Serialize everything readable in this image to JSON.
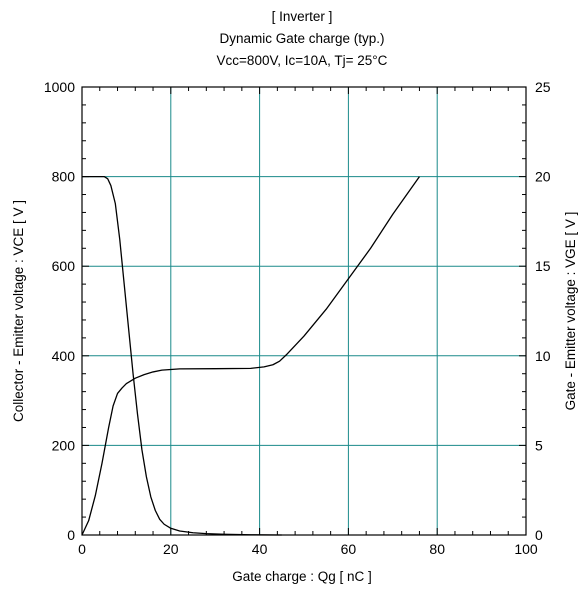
{
  "chart_data": {
    "type": "line",
    "title_lines": [
      "[ Inverter ]",
      "Dynamic Gate charge  (typ.)",
      "Vcc=800V, Ic=10A, Tj= 25°C"
    ],
    "xlabel": "Gate charge  :  Qg  [ nC ]",
    "ylabel_left": "Collector - Emitter voltage  :  VCE  [ V ]",
    "ylabel_right": "Gate - Emitter voltage  :  VGE  [ V ]",
    "xlim": [
      0,
      100
    ],
    "ylim_left": [
      0,
      1000
    ],
    "ylim_right": [
      0,
      25
    ],
    "x_ticks": [
      "0",
      "20",
      "40",
      "60",
      "80",
      "100"
    ],
    "y_left_ticks": [
      "0",
      "200",
      "400",
      "600",
      "800",
      "1000"
    ],
    "y_right_ticks": [
      "0",
      "5",
      "10",
      "15",
      "20",
      "25"
    ],
    "grid": true,
    "series": [
      {
        "axis": "left",
        "color": "#000000",
        "points": [
          [
            0,
            800
          ],
          [
            3,
            800
          ],
          [
            5,
            800
          ],
          [
            5.8,
            795
          ],
          [
            6.5,
            780
          ],
          [
            7.5,
            740
          ],
          [
            8.5,
            660
          ],
          [
            9.5,
            560
          ],
          [
            10.5,
            460
          ],
          [
            11.5,
            360
          ],
          [
            12.5,
            270
          ],
          [
            13.5,
            190
          ],
          [
            14.5,
            130
          ],
          [
            15.5,
            85
          ],
          [
            16.5,
            55
          ],
          [
            17.5,
            35
          ],
          [
            18.5,
            24
          ],
          [
            20,
            15
          ],
          [
            22,
            9
          ],
          [
            25,
            5
          ],
          [
            28,
            3
          ],
          [
            32,
            1.5
          ],
          [
            38,
            0.5
          ],
          [
            45,
            0
          ]
        ]
      },
      {
        "axis": "right",
        "color": "#000000",
        "points": [
          [
            0,
            0
          ],
          [
            1.5,
            0.8
          ],
          [
            3,
            2.2
          ],
          [
            4.5,
            4
          ],
          [
            6,
            6
          ],
          [
            7,
            7.2
          ],
          [
            8,
            7.9
          ],
          [
            9,
            8.2
          ],
          [
            10,
            8.45
          ],
          [
            12,
            8.75
          ],
          [
            14,
            8.95
          ],
          [
            16,
            9.1
          ],
          [
            18,
            9.2
          ],
          [
            22,
            9.27
          ],
          [
            30,
            9.28
          ],
          [
            38,
            9.3
          ],
          [
            41,
            9.38
          ],
          [
            43,
            9.5
          ],
          [
            44.5,
            9.7
          ],
          [
            46,
            10.05
          ],
          [
            50,
            11.1
          ],
          [
            55,
            12.6
          ],
          [
            60,
            14.3
          ],
          [
            65,
            16
          ],
          [
            70,
            17.9
          ],
          [
            76,
            20
          ]
        ]
      }
    ]
  }
}
